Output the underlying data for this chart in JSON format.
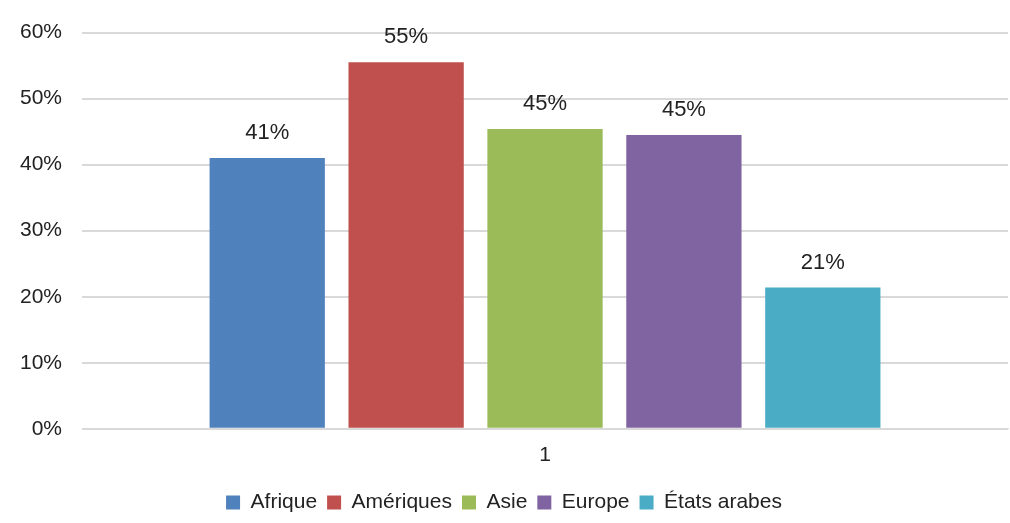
{
  "chart_data": {
    "type": "bar",
    "categories": [
      "1"
    ],
    "series": [
      {
        "name": "Afrique",
        "color": "#4f81bd",
        "values": [
          41
        ],
        "value_labels": [
          "41%"
        ]
      },
      {
        "name": "Amériques",
        "color": "#c0504d",
        "values": [
          55.5
        ],
        "value_labels": [
          "55%"
        ]
      },
      {
        "name": "Asie",
        "color": "#9bbb59",
        "values": [
          45.4
        ],
        "value_labels": [
          "45%"
        ]
      },
      {
        "name": "Europe",
        "color": "#8064a2",
        "values": [
          44.5
        ],
        "value_labels": [
          "45%"
        ]
      },
      {
        "name": "États arabes",
        "color": "#4bacc6",
        "values": [
          21.4
        ],
        "value_labels": [
          "21%"
        ]
      }
    ],
    "ylim": [
      0,
      60
    ],
    "yticks": [
      {
        "value": 0,
        "label": "0%"
      },
      {
        "value": 10,
        "label": "10%"
      },
      {
        "value": 20,
        "label": "20%"
      },
      {
        "value": 30,
        "label": "30%"
      },
      {
        "value": 40,
        "label": "40%"
      },
      {
        "value": 50,
        "label": "50%"
      },
      {
        "value": 60,
        "label": "60%"
      }
    ],
    "grid": "y",
    "legend": "bottom"
  }
}
